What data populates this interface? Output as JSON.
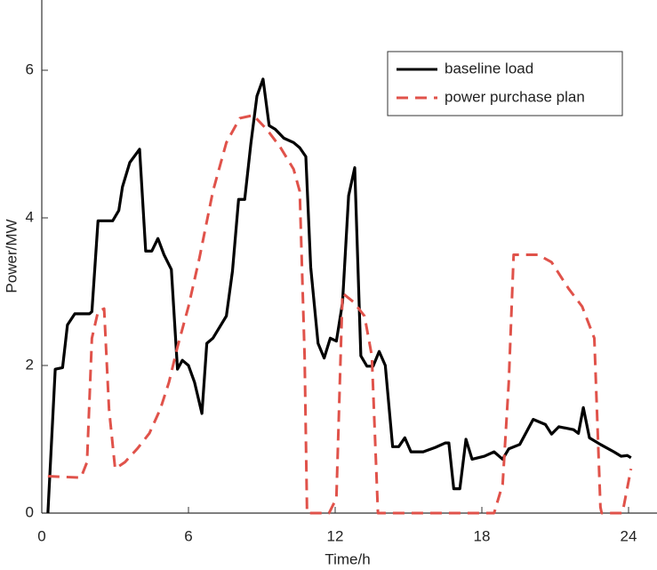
{
  "chart_data": {
    "type": "line",
    "x_label": "Time/h",
    "y_label": "Power/MW",
    "xlim": [
      0,
      25
    ],
    "ylim": [
      0,
      7
    ],
    "xticks": [
      0,
      6,
      12,
      18,
      24
    ],
    "yticks": [
      0,
      2,
      4,
      6
    ],
    "grid": false,
    "legend": "upper right",
    "series": [
      {
        "name": "baseline load",
        "color": "#000000",
        "dash": false,
        "x": [
          0.25,
          0.55,
          0.85,
          1.05,
          1.35,
          1.95,
          2.05,
          2.3,
          2.9,
          3.15,
          3.3,
          3.6,
          4.0,
          4.25,
          4.5,
          4.75,
          5.0,
          5.3,
          5.55,
          5.75,
          6.0,
          6.25,
          6.55,
          6.75,
          7.0,
          7.55,
          7.8,
          8.05,
          8.3,
          8.55,
          8.8,
          9.05,
          9.3,
          9.55,
          9.9,
          10.3,
          10.55,
          10.8,
          11.0,
          11.3,
          11.55,
          11.8,
          12.05,
          12.3,
          12.55,
          12.8,
          13.05,
          13.3,
          13.55,
          13.8,
          14.05,
          14.35,
          14.6,
          14.85,
          15.1,
          15.6,
          16.1,
          16.5,
          16.65,
          16.85,
          17.1,
          17.35,
          17.6,
          18.1,
          18.5,
          18.85,
          19.1,
          19.55,
          20.1,
          20.6,
          20.85,
          21.15,
          21.75,
          21.95,
          22.15,
          22.4,
          22.85,
          23.4,
          23.7,
          23.95,
          24.1
        ],
        "values": [
          0,
          1.95,
          1.97,
          2.55,
          2.7,
          2.7,
          2.73,
          3.96,
          3.96,
          4.1,
          4.42,
          4.75,
          4.93,
          3.55,
          3.55,
          3.72,
          3.5,
          3.3,
          1.95,
          2.07,
          2.0,
          1.77,
          1.35,
          2.3,
          2.37,
          2.67,
          3.28,
          4.25,
          4.25,
          5.0,
          5.65,
          5.88,
          5.25,
          5.2,
          5.08,
          5.02,
          4.95,
          4.83,
          3.33,
          2.3,
          2.1,
          2.37,
          2.33,
          2.85,
          4.3,
          4.68,
          2.13,
          1.99,
          1.99,
          2.19,
          2.0,
          0.9,
          0.9,
          1.02,
          0.83,
          0.83,
          0.89,
          0.95,
          0.95,
          0.33,
          0.33,
          1.0,
          0.73,
          0.77,
          0.83,
          0.73,
          0.87,
          0.93,
          1.27,
          1.2,
          1.07,
          1.17,
          1.13,
          1.08,
          1.43,
          1.02,
          0.93,
          0.83,
          0.77,
          0.78,
          0.75
        ]
      },
      {
        "name": "power purchase plan",
        "color": "#e0524a",
        "dash": true,
        "x": [
          0.25,
          1.6,
          1.85,
          2.05,
          2.3,
          2.55,
          2.75,
          3.0,
          3.4,
          3.9,
          4.4,
          4.85,
          5.2,
          5.55,
          6.0,
          6.45,
          7.0,
          7.55,
          8.1,
          8.65,
          9.2,
          9.75,
          10.3,
          10.55,
          10.75,
          10.85,
          11.75,
          12.05,
          12.3,
          12.75,
          13.2,
          13.5,
          13.75,
          18.5,
          18.85,
          19.1,
          19.3,
          20.3,
          20.85,
          21.55,
          22.1,
          22.6,
          22.85,
          22.9,
          23.75,
          24.1
        ],
        "values": [
          0.5,
          0.48,
          0.69,
          2.37,
          2.73,
          2.77,
          1.41,
          0.6,
          0.69,
          0.87,
          1.08,
          1.41,
          1.77,
          2.25,
          2.8,
          3.46,
          4.36,
          5.02,
          5.35,
          5.39,
          5.2,
          4.96,
          4.66,
          4.36,
          2.13,
          0,
          0,
          0.2,
          2.98,
          2.86,
          2.67,
          2.13,
          0,
          0,
          0.39,
          1.77,
          3.5,
          3.5,
          3.4,
          3.04,
          2.8,
          2.37,
          0.08,
          0,
          0,
          0.6
        ]
      }
    ]
  }
}
